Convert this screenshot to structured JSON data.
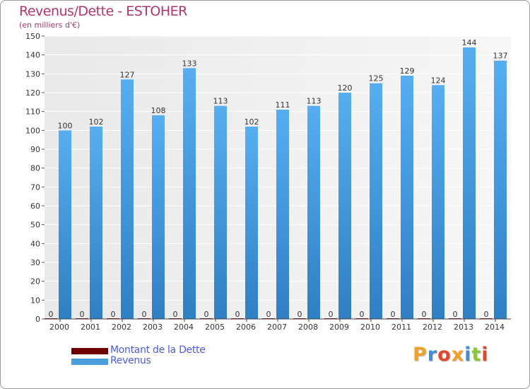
{
  "header": {
    "title": "Revenus/Dette - ESTOHER",
    "subtitle": "(en milliers d'€)"
  },
  "legend": {
    "items": [
      {
        "label": "Montant de la Dette",
        "color": "#6e0000"
      },
      {
        "label": "Revenus",
        "color": "#4a9ede"
      }
    ]
  },
  "branding": {
    "logo_text": "Proxiti",
    "logo_colors": [
      "#f0a12a",
      "#3f8fd8",
      "#e5452a",
      "#f0a12a",
      "#3f8fd8",
      "#8cc63f",
      "#e5452a"
    ]
  },
  "chart_data": {
    "type": "bar",
    "categories": [
      "2000",
      "2001",
      "2002",
      "2003",
      "2004",
      "2005",
      "2006",
      "2007",
      "2008",
      "2009",
      "2010",
      "2011",
      "2012",
      "2013",
      "2014"
    ],
    "series": [
      {
        "name": "Montant de la Dette",
        "values": [
          0,
          0,
          0,
          0,
          0,
          0,
          0,
          0,
          0,
          0,
          0,
          0,
          0,
          0,
          0
        ],
        "color": "#6e0000"
      },
      {
        "name": "Revenus",
        "values": [
          100,
          102,
          127,
          108,
          133,
          113,
          102,
          111,
          113,
          120,
          125,
          129,
          124,
          144,
          137
        ],
        "color": "#4a9ede"
      }
    ],
    "title": "Revenus/Dette - ESTOHER",
    "ylabel": "(en milliers d'€)",
    "ylim": [
      0,
      150
    ],
    "yticks": [
      0,
      10,
      20,
      30,
      40,
      50,
      60,
      70,
      80,
      90,
      100,
      110,
      120,
      130,
      140,
      150
    ],
    "grid": true,
    "legend_position": "bottom-left"
  }
}
